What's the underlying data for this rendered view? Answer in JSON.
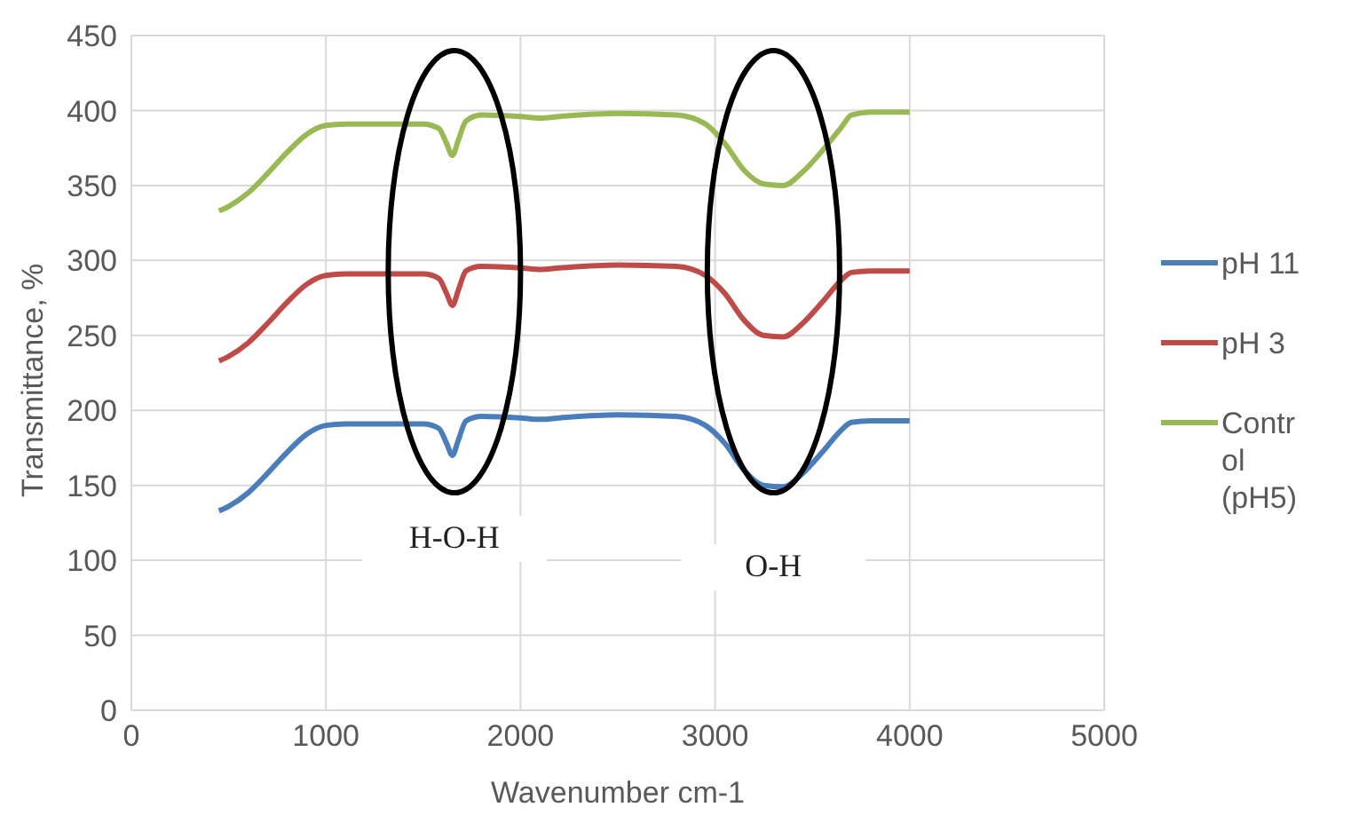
{
  "chart_data": {
    "type": "line",
    "xlabel": "Wavenumber cm-1",
    "ylabel": "Transmittance, %",
    "x": [
      450,
      500,
      600,
      700,
      800,
      900,
      1000,
      1100,
      1300,
      1500,
      1580,
      1620,
      1650,
      1680,
      1720,
      1800,
      2000,
      2100,
      2200,
      2500,
      2800,
      2950,
      3050,
      3150,
      3250,
      3350,
      3450,
      3550,
      3650,
      3700,
      3800,
      4000
    ],
    "series": [
      {
        "name": "pH 11",
        "color": "#4a7ebb",
        "values": [
          133,
          136,
          145,
          158,
          172,
          184,
          190,
          191,
          191,
          191,
          188,
          178,
          170,
          180,
          193,
          196,
          195,
          194,
          195,
          197,
          196,
          190,
          178,
          160,
          150,
          149,
          158,
          172,
          187,
          192,
          193,
          193
        ]
      },
      {
        "name": "pH 3",
        "color": "#be4b48",
        "values": [
          233,
          236,
          245,
          258,
          272,
          284,
          290,
          291,
          291,
          291,
          288,
          278,
          270,
          280,
          293,
          296,
          295,
          294,
          295,
          297,
          296,
          290,
          278,
          260,
          250,
          249,
          258,
          272,
          287,
          292,
          293,
          293
        ]
      },
      {
        "name": "Control (pH5)",
        "color": "#98b954",
        "values": [
          333,
          336,
          345,
          358,
          372,
          384,
          390,
          391,
          391,
          391,
          388,
          378,
          370,
          380,
          393,
          397,
          396,
          395,
          396,
          398,
          397,
          391,
          378,
          360,
          351,
          350,
          359,
          373,
          389,
          397,
          399,
          399
        ]
      }
    ],
    "xlim": [
      0,
      5000
    ],
    "xticks": [
      0,
      1000,
      2000,
      3000,
      4000,
      5000
    ],
    "ylim": [
      0,
      450
    ],
    "yticks": [
      0,
      50,
      100,
      150,
      200,
      250,
      300,
      350,
      400,
      450
    ],
    "grid": true,
    "legend": "right",
    "marker": "none",
    "line_style": "solid",
    "annotations": [
      "H-O-H",
      "O-H"
    ]
  }
}
